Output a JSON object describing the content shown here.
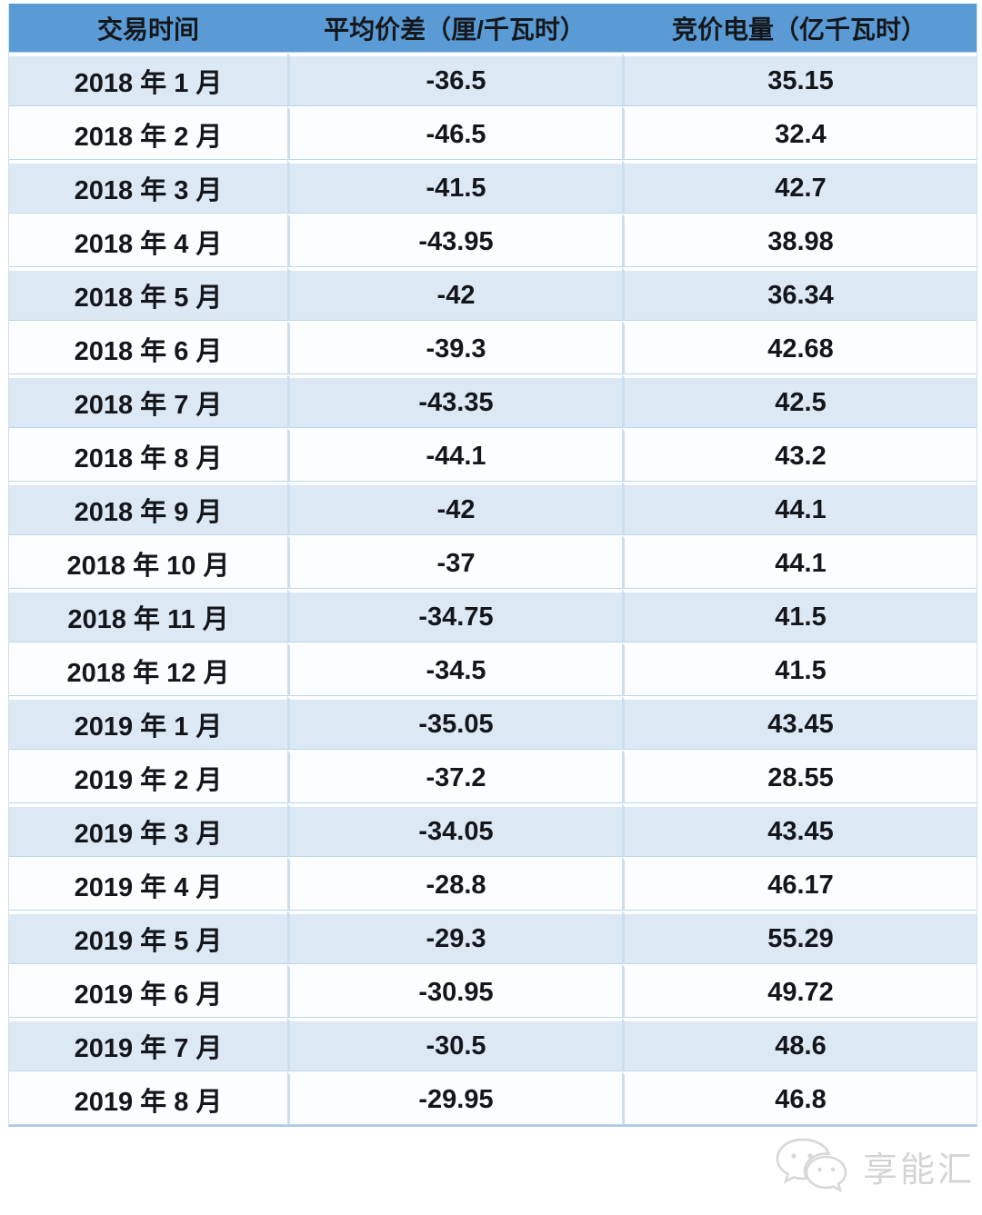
{
  "table": {
    "columns": [
      {
        "key": "period",
        "label": "交易时间"
      },
      {
        "key": "avg_price_diff",
        "label": "平均价差（厘/千瓦时）"
      },
      {
        "key": "bid_volume",
        "label": "竞价电量（亿千瓦时）"
      }
    ],
    "rows": [
      {
        "period": "2018 年 1 月",
        "avg_price_diff": "-36.5",
        "bid_volume": "35.15"
      },
      {
        "period": "2018 年 2 月",
        "avg_price_diff": "-46.5",
        "bid_volume": "32.4"
      },
      {
        "period": "2018 年 3 月",
        "avg_price_diff": "-41.5",
        "bid_volume": "42.7"
      },
      {
        "period": "2018 年 4 月",
        "avg_price_diff": "-43.95",
        "bid_volume": "38.98"
      },
      {
        "period": "2018 年 5 月",
        "avg_price_diff": "-42",
        "bid_volume": "36.34"
      },
      {
        "period": "2018 年 6 月",
        "avg_price_diff": "-39.3",
        "bid_volume": "42.68"
      },
      {
        "period": "2018 年 7 月",
        "avg_price_diff": "-43.35",
        "bid_volume": "42.5"
      },
      {
        "period": "2018 年 8 月",
        "avg_price_diff": "-44.1",
        "bid_volume": "43.2"
      },
      {
        "period": "2018 年 9 月",
        "avg_price_diff": "-42",
        "bid_volume": "44.1"
      },
      {
        "period": "2018 年 10 月",
        "avg_price_diff": "-37",
        "bid_volume": "44.1"
      },
      {
        "period": "2018 年 11 月",
        "avg_price_diff": "-34.75",
        "bid_volume": "41.5"
      },
      {
        "period": "2018 年 12 月",
        "avg_price_diff": "-34.5",
        "bid_volume": "41.5"
      },
      {
        "period": "2019 年 1 月",
        "avg_price_diff": "-35.05",
        "bid_volume": "43.45"
      },
      {
        "period": "2019 年 2 月",
        "avg_price_diff": "-37.2",
        "bid_volume": "28.55"
      },
      {
        "period": "2019 年 3 月",
        "avg_price_diff": "-34.05",
        "bid_volume": "43.45"
      },
      {
        "period": "2019 年 4 月",
        "avg_price_diff": "-28.8",
        "bid_volume": "46.17"
      },
      {
        "period": "2019 年 5 月",
        "avg_price_diff": "-29.3",
        "bid_volume": "55.29"
      },
      {
        "period": "2019 年 6 月",
        "avg_price_diff": "-30.95",
        "bid_volume": "49.72"
      },
      {
        "period": "2019 年 7 月",
        "avg_price_diff": "-30.5",
        "bid_volume": "48.6"
      },
      {
        "period": "2019 年 8 月",
        "avg_price_diff": "-29.95",
        "bid_volume": "46.8"
      }
    ]
  },
  "chart_data": {
    "type": "table",
    "title": "",
    "columns": [
      "交易时间",
      "平均价差（厘/千瓦时）",
      "竞价电量（亿千瓦时）"
    ],
    "rows": [
      [
        "2018 年 1 月",
        -36.5,
        35.15
      ],
      [
        "2018 年 2 月",
        -46.5,
        32.4
      ],
      [
        "2018 年 3 月",
        -41.5,
        42.7
      ],
      [
        "2018 年 4 月",
        -43.95,
        38.98
      ],
      [
        "2018 年 5 月",
        -42,
        36.34
      ],
      [
        "2018 年 6 月",
        -39.3,
        42.68
      ],
      [
        "2018 年 7 月",
        -43.35,
        42.5
      ],
      [
        "2018 年 8 月",
        -44.1,
        43.2
      ],
      [
        "2018 年 9 月",
        -42,
        44.1
      ],
      [
        "2018 年 10 月",
        -37,
        44.1
      ],
      [
        "2018 年 11 月",
        -34.75,
        41.5
      ],
      [
        "2018 年 12 月",
        -34.5,
        41.5
      ],
      [
        "2019 年 1 月",
        -35.05,
        43.45
      ],
      [
        "2019 年 2 月",
        -37.2,
        28.55
      ],
      [
        "2019 年 3 月",
        -34.05,
        43.45
      ],
      [
        "2019 年 4 月",
        -28.8,
        46.17
      ],
      [
        "2019 年 5 月",
        -29.3,
        55.29
      ],
      [
        "2019 年 6 月",
        -30.95,
        49.72
      ],
      [
        "2019 年 7 月",
        -30.5,
        48.6
      ],
      [
        "2019 年 8 月",
        -29.95,
        46.8
      ]
    ]
  },
  "watermark": {
    "text": "享能汇",
    "icon": "chat-bubbles-icon"
  },
  "colors": {
    "header_bg": "#5b9bd5",
    "row_alt_bg": "#dce9f5",
    "row_plain_bg": "#fcfdfe",
    "gridline": "#bdd6eb",
    "text": "#14161a",
    "watermark": "#d4d4d4"
  }
}
